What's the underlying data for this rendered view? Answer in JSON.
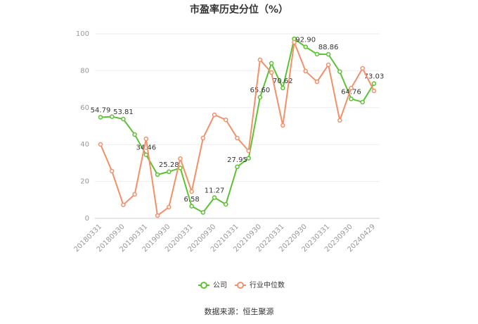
{
  "chart_data": {
    "type": "line",
    "title": "市盈率历史分位（%）",
    "categories": [
      "20180331",
      null,
      "20180930",
      null,
      "20190331",
      null,
      "20190930",
      null,
      "20200331",
      null,
      "20200930",
      null,
      "20210331",
      null,
      "20210930",
      null,
      "20220331",
      null,
      "20220930",
      null,
      "20230331",
      null,
      "20230930",
      null,
      "20240429"
    ],
    "series": [
      {
        "name": "公司",
        "color": "#5cc232",
        "values": [
          54.79,
          55.1,
          53.81,
          45.4,
          34.46,
          23.7,
          25.28,
          27.3,
          6.58,
          3.2,
          11.27,
          7.6,
          27.95,
          32.6,
          65.6,
          84.0,
          70.62,
          97.3,
          92.9,
          89.0,
          88.86,
          79.5,
          64.76,
          63.0,
          73.03
        ],
        "value_labels": [
          "54.79",
          null,
          "53.81",
          null,
          "34.46",
          null,
          "25.28",
          null,
          "6.58",
          null,
          "11.27",
          null,
          "27.95",
          null,
          "65.60",
          null,
          "70.62",
          null,
          "92.90",
          null,
          "88.86",
          null,
          "64.76",
          null,
          "73.03"
        ]
      },
      {
        "name": "行业中位数",
        "color": "#f39069",
        "values": [
          40.1,
          25.6,
          7.3,
          13.0,
          43.1,
          1.5,
          6.1,
          32.4,
          14.5,
          43.5,
          56.1,
          53.4,
          43.5,
          36.6,
          85.9,
          79.0,
          50.4,
          95.4,
          79.8,
          74.0,
          83.2,
          53.1,
          70.6,
          81.3,
          69.1
        ]
      }
    ],
    "ylim": [
      0,
      100
    ],
    "yticks": [
      0,
      20,
      40,
      60,
      80,
      100
    ],
    "grid": true,
    "legend": "bottom",
    "source": "数据来源：恒生聚源"
  }
}
